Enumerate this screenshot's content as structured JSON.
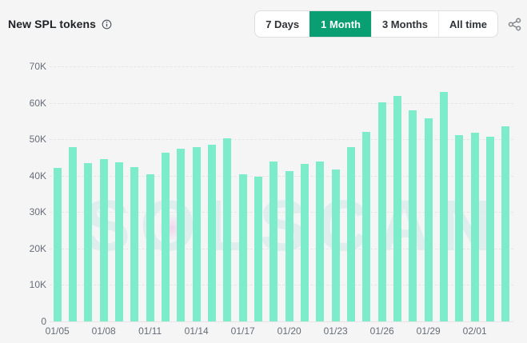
{
  "header": {
    "title": "New SPL tokens",
    "range_buttons": [
      {
        "label": "7 Days",
        "active": false
      },
      {
        "label": "1 Month",
        "active": true
      },
      {
        "label": "3 Months",
        "active": false
      },
      {
        "label": "All time",
        "active": false
      }
    ],
    "icons": {
      "info": "info-circle-icon",
      "share": "share-icon"
    }
  },
  "watermark": {
    "text": "SOLSCAN"
  },
  "colors": {
    "background": "#f5f5f6",
    "bar": "#7deccb",
    "accent": "#0a9e73",
    "accent_text": "#ffffff",
    "button_text": "#2f3237",
    "button_border": "#dcdee0",
    "grid_line": "#e4e5e7",
    "axis_label": "#666d76",
    "title_text": "#1e2125",
    "watermark_color": "rgba(126,208,193,0.18)",
    "watermark_accent": "rgba(233,176,227,0.45)"
  },
  "chart_data": {
    "type": "bar",
    "title": "New SPL tokens",
    "x": [
      "01/05",
      "01/06",
      "01/07",
      "01/08",
      "01/09",
      "01/10",
      "01/11",
      "01/12",
      "01/13",
      "01/14",
      "01/15",
      "01/16",
      "01/17",
      "01/18",
      "01/19",
      "01/20",
      "01/21",
      "01/22",
      "01/23",
      "01/24",
      "01/25",
      "01/26",
      "01/27",
      "01/28",
      "01/29",
      "01/30",
      "01/31",
      "02/01",
      "02/02",
      "02/03"
    ],
    "values": [
      42200,
      47800,
      43400,
      44600,
      43700,
      42400,
      40400,
      46200,
      47400,
      47900,
      48400,
      50300,
      40300,
      39700,
      43800,
      41200,
      43300,
      44000,
      41600,
      47800,
      52000,
      60200,
      61800,
      58000,
      55800,
      63000,
      51100,
      51700,
      50600,
      53600
    ],
    "x_tick_step": 3,
    "x_tick_labels": [
      "01/05",
      "01/08",
      "01/11",
      "01/14",
      "01/17",
      "01/20",
      "01/23",
      "01/26",
      "01/29",
      "02/01"
    ],
    "y_tick_labels": [
      "70K",
      "60K",
      "50K",
      "40K",
      "30K",
      "20K",
      "10K",
      "0"
    ],
    "ylim": [
      0,
      70000
    ],
    "grid": "horizontal-dashed",
    "legend": "none",
    "bar_color": "#7deccb"
  }
}
